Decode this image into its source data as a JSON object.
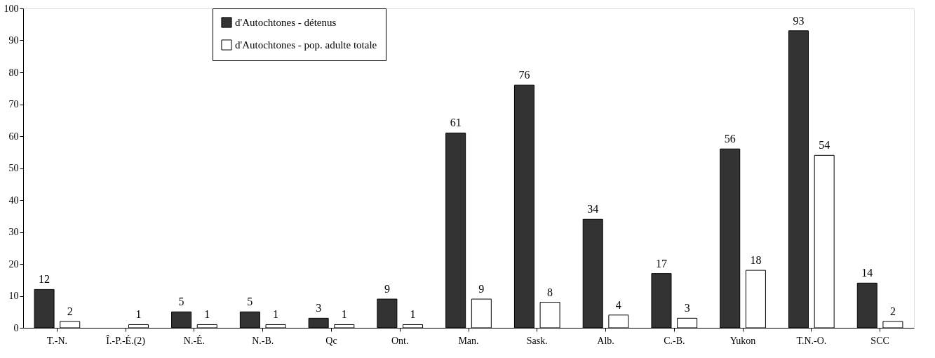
{
  "chart_data": {
    "type": "bar",
    "categories": [
      "T.-N.",
      "Î.-P.-É.(2)",
      "N.-É.",
      "N.-B.",
      "Qc",
      "Ont.",
      "Man.",
      "Sask.",
      "Alb.",
      "C.-B.",
      "Yukon",
      "T.N.-O.",
      "SCC"
    ],
    "series": [
      {
        "name": "d'Autochtones - détenus",
        "color": "#333333",
        "values": [
          12,
          null,
          5,
          5,
          3,
          9,
          61,
          76,
          34,
          17,
          56,
          93,
          14
        ]
      },
      {
        "name": "d'Autochtones - pop. adulte totale",
        "color": "#ffffff",
        "values": [
          2,
          1,
          1,
          1,
          1,
          1,
          9,
          8,
          4,
          3,
          18,
          54,
          2
        ]
      }
    ],
    "ylim": [
      0,
      100
    ],
    "yticks": [
      0,
      10,
      20,
      30,
      40,
      50,
      60,
      70,
      80,
      90,
      100
    ],
    "grid": false,
    "legend": "top",
    "data_labels": true
  }
}
